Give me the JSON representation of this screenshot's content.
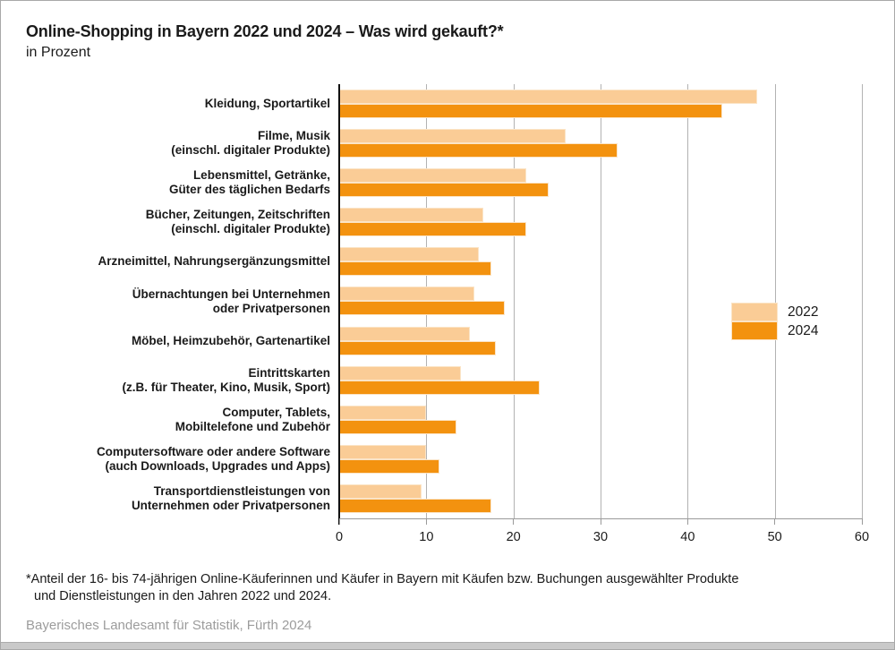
{
  "header": {
    "title": "Online-Shopping in Bayern 2022 und 2024 – Was wird gekauft?*",
    "subtitle": "in Prozent"
  },
  "chart_data": {
    "type": "bar",
    "orientation": "horizontal",
    "title": "Online-Shopping in Bayern 2022 und 2024 – Was wird gekauft?*",
    "subtitle": "in Prozent",
    "unit": "Prozent",
    "categories": [
      [
        "Kleidung, Sportartikel"
      ],
      [
        "Filme, Musik",
        "(einschl. digitaler Produkte)"
      ],
      [
        "Lebensmittel, Getränke,",
        "Güter des täglichen Bedarfs"
      ],
      [
        "Bücher, Zeitungen, Zeitschriften",
        "(einschl. digitaler Produkte)"
      ],
      [
        "Arzneimittel, Nahrungsergänzungsmittel"
      ],
      [
        "Übernachtungen bei Unternehmen",
        "oder Privatpersonen"
      ],
      [
        "Möbel, Heimzubehör, Gartenartikel"
      ],
      [
        "Eintrittskarten",
        "(z.B. für Theater, Kino, Musik, Sport)"
      ],
      [
        "Computer, Tablets,",
        "Mobiltelefone und Zubehör"
      ],
      [
        "Computersoftware oder andere Software",
        "(auch Downloads, Upgrades und Apps)"
      ],
      [
        "Transportdienstleistungen von",
        "Unternehmen oder Privatpersonen"
      ]
    ],
    "series": [
      {
        "name": "2022",
        "color": "#facc96",
        "values": [
          48,
          26,
          21.5,
          16.5,
          16,
          15.5,
          15,
          14,
          10,
          10,
          9.5
        ]
      },
      {
        "name": "2024",
        "color": "#f3920f",
        "values": [
          44,
          32,
          24,
          21.5,
          17.5,
          19,
          18,
          23,
          13.5,
          11.5,
          17.5
        ]
      }
    ],
    "xlim": [
      0,
      60
    ],
    "xticks": [
      0,
      10,
      20,
      30,
      40,
      50,
      60
    ],
    "grid": true,
    "legend_position": "middle-right"
  },
  "footnote": {
    "lines": [
      "*Anteil der 16- bis 74-jährigen Online-Käuferinnen und Käufer in Bayern mit Käufen bzw. Buchungen ausgewählter Produkte",
      "und Dienstleistungen in den Jahren 2022 und 2024."
    ]
  },
  "source": "Bayerisches Landesamt für Statistik, Fürth 2024"
}
